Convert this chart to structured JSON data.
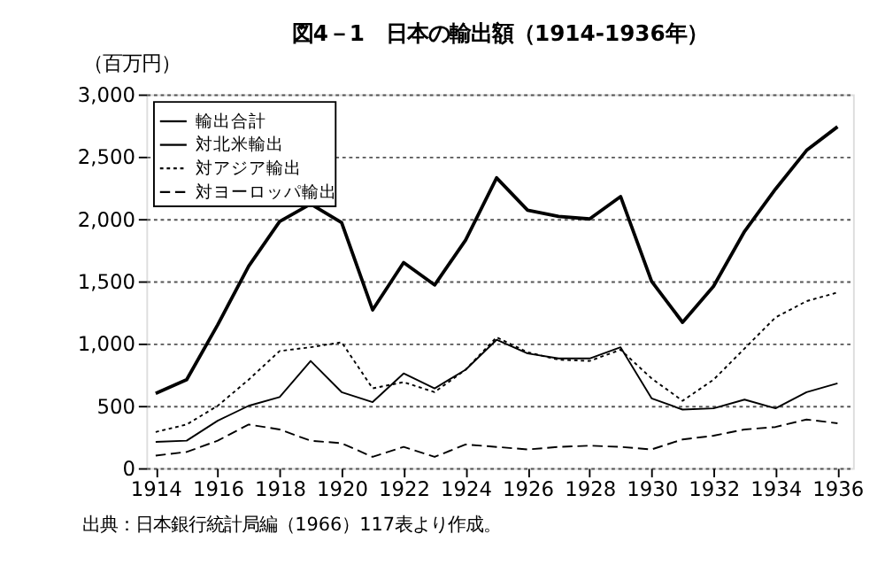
{
  "chart_data": {
    "type": "line",
    "title": "図4－1　日本の輸出額（1914-1936年）",
    "ylabel": "（百万円）",
    "x": [
      1914,
      1915,
      1916,
      1917,
      1918,
      1919,
      1920,
      1921,
      1922,
      1923,
      1924,
      1925,
      1926,
      1927,
      1928,
      1929,
      1930,
      1931,
      1932,
      1933,
      1934,
      1935,
      1936
    ],
    "series": [
      {
        "name": "輸出合計",
        "color": "#000000",
        "line_style": "solid",
        "values": [
          600,
          710,
          1150,
          1620,
          1980,
          2120,
          1970,
          1270,
          1650,
          1470,
          1830,
          2330,
          2070,
          2020,
          2000,
          2180,
          1500,
          1170,
          1460,
          1900,
          2240,
          2550,
          2740
        ]
      },
      {
        "name": "対北米輸出",
        "color": "#000000",
        "line_style": "solid",
        "values": [
          210,
          220,
          380,
          500,
          570,
          860,
          610,
          530,
          760,
          640,
          790,
          1030,
          920,
          880,
          880,
          970,
          560,
          470,
          480,
          550,
          480,
          610,
          680
        ]
      },
      {
        "name": "対アジア輸出",
        "color": "#000000",
        "line_style": "dotted",
        "values": [
          290,
          350,
          500,
          710,
          940,
          970,
          1010,
          640,
          690,
          610,
          790,
          1050,
          930,
          870,
          860,
          950,
          720,
          540,
          710,
          960,
          1210,
          1340,
          1410
        ]
      },
      {
        "name": "対ヨーロッパ輸出",
        "color": "#000000",
        "line_style": "dashed",
        "values": [
          100,
          130,
          220,
          350,
          310,
          220,
          200,
          90,
          170,
          90,
          190,
          170,
          150,
          170,
          180,
          170,
          150,
          230,
          260,
          310,
          330,
          390,
          360
        ]
      }
    ],
    "xlim": [
      1913.7,
      1936.5
    ],
    "xticks": [
      1914,
      1916,
      1918,
      1920,
      1922,
      1924,
      1926,
      1928,
      1930,
      1932,
      1934,
      1936
    ],
    "ylim": [
      0,
      3000
    ],
    "yticks": [
      0,
      500,
      {
        "value": 1000,
        "label": "1,000"
      },
      {
        "value": 1500,
        "label": "1,500"
      },
      {
        "value": 2000,
        "label": "2,000"
      },
      {
        "value": 2500,
        "label": "2,500"
      },
      {
        "value": 3000,
        "label": "3,000"
      }
    ],
    "grid": "y",
    "legend": "top left",
    "marker": "none",
    "annotations": [
      "出典：日本銀行統計局編（1966）117表より作成。"
    ]
  }
}
